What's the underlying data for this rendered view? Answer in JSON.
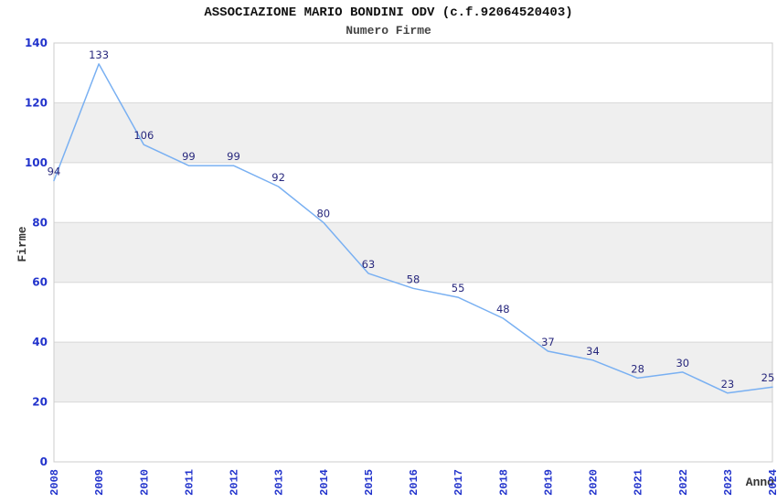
{
  "chart_data": {
    "type": "line",
    "title": "ASSOCIAZIONE MARIO BONDINI ODV (c.f.92064520403)",
    "subtitle": "Numero Firme",
    "xlabel": "Anno",
    "ylabel": "Firme",
    "categories": [
      "2008",
      "2009",
      "2010",
      "2011",
      "2012",
      "2013",
      "2014",
      "2015",
      "2016",
      "2017",
      "2018",
      "2019",
      "2020",
      "2021",
      "2022",
      "2023",
      "2024"
    ],
    "values": [
      94,
      133,
      106,
      99,
      99,
      92,
      80,
      63,
      58,
      55,
      48,
      37,
      34,
      28,
      30,
      23,
      25
    ],
    "ylim": [
      0,
      140
    ],
    "ytick_step": 20,
    "grid": true,
    "legend": false,
    "band_alternation": "gray bands on 20-40, 60-80, 100-120",
    "colors": {
      "line": "#79b0f2",
      "point_label": "#28287d",
      "tick_label": "#2233cc",
      "band": "#efefef",
      "gridline": "#d8d8d8",
      "plot_border": "#cccccc",
      "title": "#111111",
      "subtitle": "#444444",
      "axis_title": "#333333",
      "background": "#ffffff"
    }
  }
}
